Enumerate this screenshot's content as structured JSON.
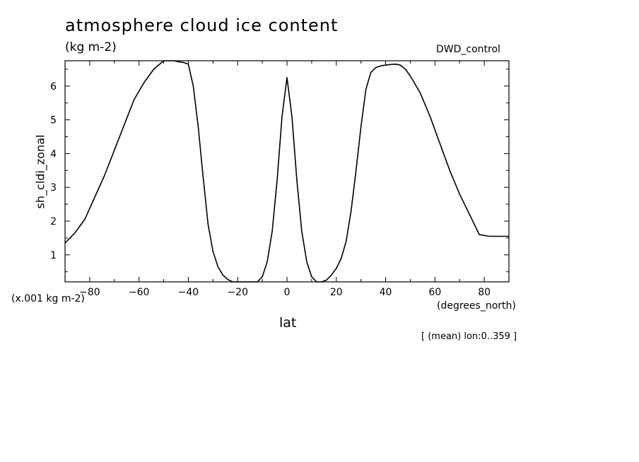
{
  "chart_data": {
    "type": "line",
    "title": "atmosphere cloud ice content",
    "subtitle": "(kg m-2)",
    "dataset_label": "DWD_control",
    "ylabel": "sh_cldi_zonal",
    "y_scale_note": "(x.001 kg m-2)",
    "xlabel": "lat",
    "x_units": "(degrees_north)",
    "footnote": "[ (mean) lon:0..359 ]",
    "xlim": [
      -90,
      90
    ],
    "ylim": [
      0.2,
      6.75
    ],
    "xticks": [
      -80,
      -60,
      -40,
      -20,
      0,
      20,
      40,
      60,
      80
    ],
    "yticks": [
      1,
      2,
      3,
      4,
      5,
      6
    ],
    "grid": false,
    "series": [
      {
        "color": "#000000",
        "x": [
          -90,
          -86,
          -82,
          -78,
          -74,
          -70,
          -66,
          -62,
          -58,
          -54,
          -50,
          -48,
          -46,
          -44,
          -42,
          -40,
          -38,
          -36,
          -34,
          -32,
          -30,
          -28,
          -26,
          -24,
          -22,
          -20,
          -18,
          -16,
          -14,
          -12,
          -10,
          -8,
          -6,
          -4,
          -2,
          0,
          2,
          4,
          6,
          8,
          10,
          12,
          14,
          16,
          18,
          20,
          22,
          24,
          26,
          28,
          30,
          32,
          34,
          36,
          38,
          40,
          42,
          44,
          46,
          48,
          50,
          54,
          58,
          62,
          66,
          70,
          74,
          78,
          82,
          86,
          90
        ],
        "y": [
          1.35,
          1.65,
          2.05,
          2.7,
          3.35,
          4.1,
          4.85,
          5.6,
          6.1,
          6.5,
          6.75,
          6.8,
          6.75,
          6.72,
          6.7,
          6.65,
          6.0,
          4.8,
          3.3,
          1.9,
          1.1,
          0.65,
          0.4,
          0.27,
          0.2,
          0.2,
          0.2,
          0.2,
          0.2,
          0.2,
          0.35,
          0.8,
          1.7,
          3.2,
          5.1,
          6.25,
          5.1,
          3.2,
          1.7,
          0.8,
          0.35,
          0.2,
          0.2,
          0.25,
          0.4,
          0.6,
          0.9,
          1.4,
          2.3,
          3.5,
          4.8,
          5.9,
          6.4,
          6.55,
          6.6,
          6.62,
          6.64,
          6.65,
          6.62,
          6.5,
          6.3,
          5.8,
          5.1,
          4.3,
          3.5,
          2.8,
          2.2,
          1.6,
          1.55,
          1.55,
          1.55
        ]
      }
    ]
  }
}
